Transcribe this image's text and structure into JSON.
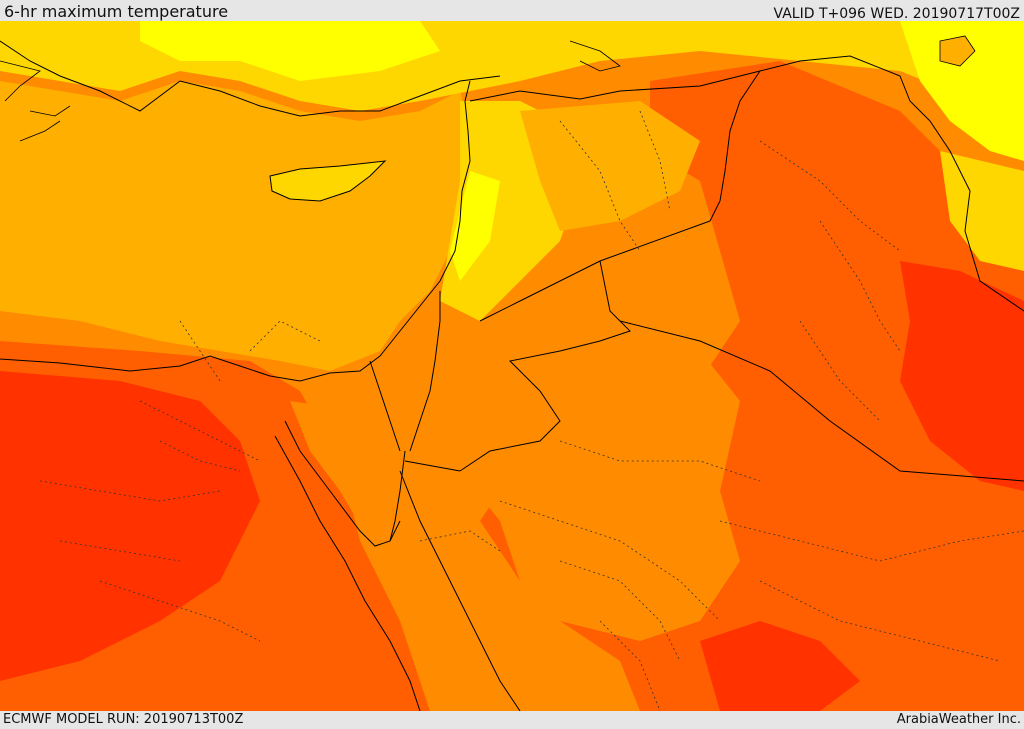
{
  "header": {
    "title": "6-hr maximum temperature",
    "valid_time": "VALID T+096 WED. 20190717T00Z"
  },
  "footer": {
    "model_run": "ECMWF MODEL RUN: 20190713T00Z",
    "credit": "ArabiaWeather Inc."
  },
  "legend_colors": {
    "yellow": "#ffff00",
    "light_orange": "#ffd700",
    "orange": "#ffaf00",
    "deep_orange": "#ff8c00",
    "red_orange": "#ff5f00",
    "red": "#ff3200"
  }
}
